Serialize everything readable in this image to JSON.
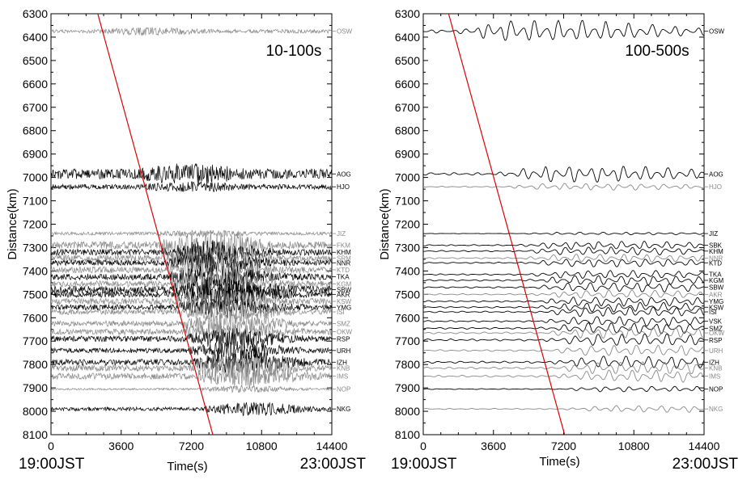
{
  "chart_data": [
    {
      "type": "line",
      "panel_label": "10-100s",
      "xlabel": "Time(s)",
      "ylabel": "Distance(km)",
      "xlim": [
        0,
        14400
      ],
      "ylim": [
        6300,
        8100
      ],
      "y_inverted": true,
      "x_ticks": [
        "0",
        "3600",
        "7200",
        "10800",
        "14400"
      ],
      "y_ticks": [
        "6300",
        "6400",
        "6500",
        "6600",
        "6700",
        "6800",
        "6900",
        "7000",
        "7100",
        "7200",
        "7300",
        "7400",
        "7500",
        "7600",
        "7700",
        "7800",
        "7900",
        "8000",
        "8100"
      ],
      "start_time": "19:00JST",
      "end_time": "23:00JST",
      "reference_line": {
        "color": "#e00000",
        "points": [
          [
            2400,
            6300
          ],
          [
            8300,
            8100
          ]
        ]
      },
      "stations": [
        {
          "name": "OSW",
          "distance": 6375,
          "color": "#888888",
          "amp": 0.6
        },
        {
          "name": "AOG",
          "distance": 6985,
          "color": "#000000",
          "amp": 1.6
        },
        {
          "name": "HJO",
          "distance": 7040,
          "color": "#000000",
          "amp": 0.8
        },
        {
          "name": "JIZ",
          "distance": 7240,
          "color": "#888888",
          "amp": 0.5
        },
        {
          "name": "FKM",
          "distance": 7290,
          "color": "#888888",
          "amp": 1.2
        },
        {
          "name": "KHM",
          "distance": 7320,
          "color": "#000000",
          "amp": 1.0
        },
        {
          "name": "SRM",
          "distance": 7345,
          "color": "#888888",
          "amp": 1.0
        },
        {
          "name": "NNR",
          "distance": 7365,
          "color": "#000000",
          "amp": 0.9
        },
        {
          "name": "KTD",
          "distance": 7395,
          "color": "#888888",
          "amp": 1.0
        },
        {
          "name": "TKA",
          "distance": 7425,
          "color": "#000000",
          "amp": 1.0
        },
        {
          "name": "KGM",
          "distance": 7455,
          "color": "#888888",
          "amp": 1.0
        },
        {
          "name": "SBW",
          "distance": 7480,
          "color": "#000000",
          "amp": 1.2
        },
        {
          "name": "AKR",
          "distance": 7500,
          "color": "#000000",
          "amp": 1.0
        },
        {
          "name": "KSW",
          "distance": 7530,
          "color": "#888888",
          "amp": 1.0
        },
        {
          "name": "YMG",
          "distance": 7555,
          "color": "#000000",
          "amp": 0.9
        },
        {
          "name": "ISI",
          "distance": 7575,
          "color": "#888888",
          "amp": 0.9
        },
        {
          "name": "SMZ",
          "distance": 7625,
          "color": "#888888",
          "amp": 0.9
        },
        {
          "name": "OKW",
          "distance": 7660,
          "color": "#888888",
          "amp": 0.9
        },
        {
          "name": "RSP",
          "distance": 7690,
          "color": "#000000",
          "amp": 0.9
        },
        {
          "name": "URH",
          "distance": 7740,
          "color": "#000000",
          "amp": 0.8
        },
        {
          "name": "IZH",
          "distance": 7790,
          "color": "#000000",
          "amp": 1.0
        },
        {
          "name": "KNB",
          "distance": 7815,
          "color": "#888888",
          "amp": 1.0
        },
        {
          "name": "IMS",
          "distance": 7850,
          "color": "#888888",
          "amp": 1.0
        },
        {
          "name": "NOP",
          "distance": 7905,
          "color": "#888888",
          "amp": 0.3
        },
        {
          "name": "NKG",
          "distance": 7990,
          "color": "#000000",
          "amp": 0.6
        }
      ]
    },
    {
      "type": "line",
      "panel_label": "100-500s",
      "xlabel": "Time(s)",
      "ylabel": "Distance(km)",
      "xlim": [
        0,
        14400
      ],
      "ylim": [
        6300,
        8100
      ],
      "y_inverted": true,
      "x_ticks": [
        "0",
        "3600",
        "7200",
        "10800",
        "14400"
      ],
      "y_ticks": [
        "6300",
        "6400",
        "6500",
        "6600",
        "6700",
        "6800",
        "6900",
        "7000",
        "7100",
        "7200",
        "7300",
        "7400",
        "7500",
        "7600",
        "7700",
        "7800",
        "7900",
        "8000",
        "8100"
      ],
      "start_time": "19:00JST",
      "end_time": "23:00JST",
      "reference_line": {
        "color": "#e00000",
        "points": [
          [
            1300,
            6300
          ],
          [
            7250,
            8100
          ]
        ]
      },
      "stations": [
        {
          "name": "OSW",
          "distance": 6375,
          "color": "#000000",
          "amp": 1.6
        },
        {
          "name": "AOG",
          "distance": 6985,
          "color": "#000000",
          "amp": 1.2
        },
        {
          "name": "HJO",
          "distance": 7040,
          "color": "#888888",
          "amp": 0.5
        },
        {
          "name": "JIZ",
          "distance": 7240,
          "color": "#000000",
          "amp": 0.2
        },
        {
          "name": "SBK",
          "distance": 7290,
          "color": "#000000",
          "amp": 0.6
        },
        {
          "name": "KHM",
          "distance": 7315,
          "color": "#000000",
          "amp": 0.6
        },
        {
          "name": "NNR",
          "distance": 7345,
          "color": "#888888",
          "amp": 0.6
        },
        {
          "name": "KTD",
          "distance": 7365,
          "color": "#000000",
          "amp": 0.6
        },
        {
          "name": "TKA",
          "distance": 7415,
          "color": "#000000",
          "amp": 0.6
        },
        {
          "name": "KGM",
          "distance": 7440,
          "color": "#000000",
          "amp": 0.7
        },
        {
          "name": "SBW",
          "distance": 7470,
          "color": "#000000",
          "amp": 0.7
        },
        {
          "name": "AKR",
          "distance": 7500,
          "color": "#888888",
          "amp": 0.6
        },
        {
          "name": "YMG",
          "distance": 7530,
          "color": "#000000",
          "amp": 0.7
        },
        {
          "name": "KSW",
          "distance": 7555,
          "color": "#000000",
          "amp": 0.7
        },
        {
          "name": "ISI",
          "distance": 7575,
          "color": "#000000",
          "amp": 0.7
        },
        {
          "name": "VSK",
          "distance": 7615,
          "color": "#000000",
          "amp": 0.7
        },
        {
          "name": "SMZ",
          "distance": 7645,
          "color": "#000000",
          "amp": 0.8
        },
        {
          "name": "OKW",
          "distance": 7665,
          "color": "#888888",
          "amp": 0.8
        },
        {
          "name": "RSP",
          "distance": 7695,
          "color": "#000000",
          "amp": 0.9
        },
        {
          "name": "URH",
          "distance": 7740,
          "color": "#888888",
          "amp": 0.8
        },
        {
          "name": "IZH",
          "distance": 7790,
          "color": "#000000",
          "amp": 0.9
        },
        {
          "name": "KNB",
          "distance": 7815,
          "color": "#888888",
          "amp": 0.9
        },
        {
          "name": "IMS",
          "distance": 7850,
          "color": "#888888",
          "amp": 0.9
        },
        {
          "name": "NOP",
          "distance": 7905,
          "color": "#000000",
          "amp": 0.4
        },
        {
          "name": "NKG",
          "distance": 7990,
          "color": "#888888",
          "amp": 0.5
        }
      ]
    }
  ]
}
